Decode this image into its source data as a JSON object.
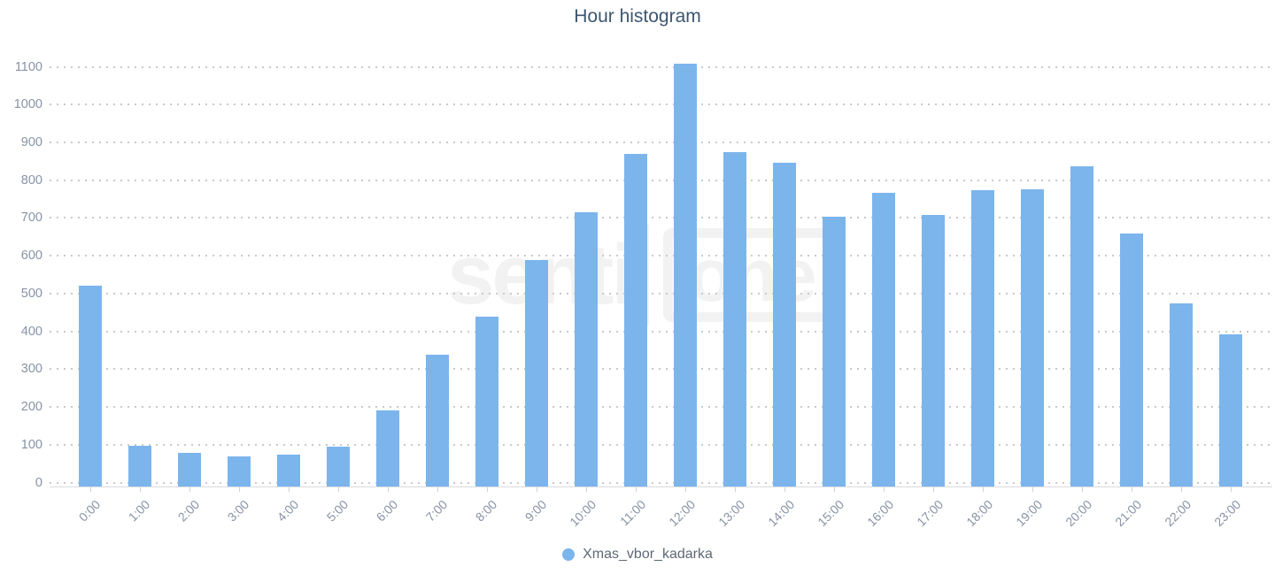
{
  "title": "Hour histogram",
  "watermark": {
    "text_left": "senti",
    "text_box": "one",
    "color": "#f2f2f2"
  },
  "legend": {
    "label": "Xmas_vbor_kadarka",
    "marker_color": "#7cb5ec"
  },
  "colors": {
    "bar": "#7cb5ec",
    "title": "#3d566e",
    "axis_labels": "#8893a5",
    "gridline": "#c9c9c9",
    "axis_line": "#d6dbe0",
    "legend_text": "#5e6874"
  },
  "chart_data": {
    "type": "bar",
    "title": "Hour histogram",
    "categories": [
      "0:00",
      "1:00",
      "2:00",
      "3:00",
      "4:00",
      "5:00",
      "6:00",
      "7:00",
      "8:00",
      "9:00",
      "10:00",
      "11:00",
      "12:00",
      "13:00",
      "14:00",
      "15:00",
      "16:00",
      "17:00",
      "18:00",
      "19:00",
      "20:00",
      "21:00",
      "22:00",
      "23:00"
    ],
    "series": [
      {
        "name": "Xmas_vbor_kadarka",
        "color": "#7cb5ec",
        "values": [
          522,
          98,
          78,
          68,
          73,
          96,
          190,
          339,
          438,
          588,
          715,
          870,
          1108,
          875,
          847,
          703,
          766,
          709,
          774,
          775,
          836,
          660,
          475,
          392
        ]
      }
    ],
    "xlabel": "",
    "ylabel": "",
    "ylim": [
      0,
      1150
    ],
    "y_ticks": [
      0,
      100,
      200,
      300,
      400,
      500,
      600,
      700,
      800,
      900,
      1000,
      1100
    ],
    "grid": "horizontal-dotted",
    "legend_position": "bottom-center",
    "x_tick_label_rotation": -45
  }
}
